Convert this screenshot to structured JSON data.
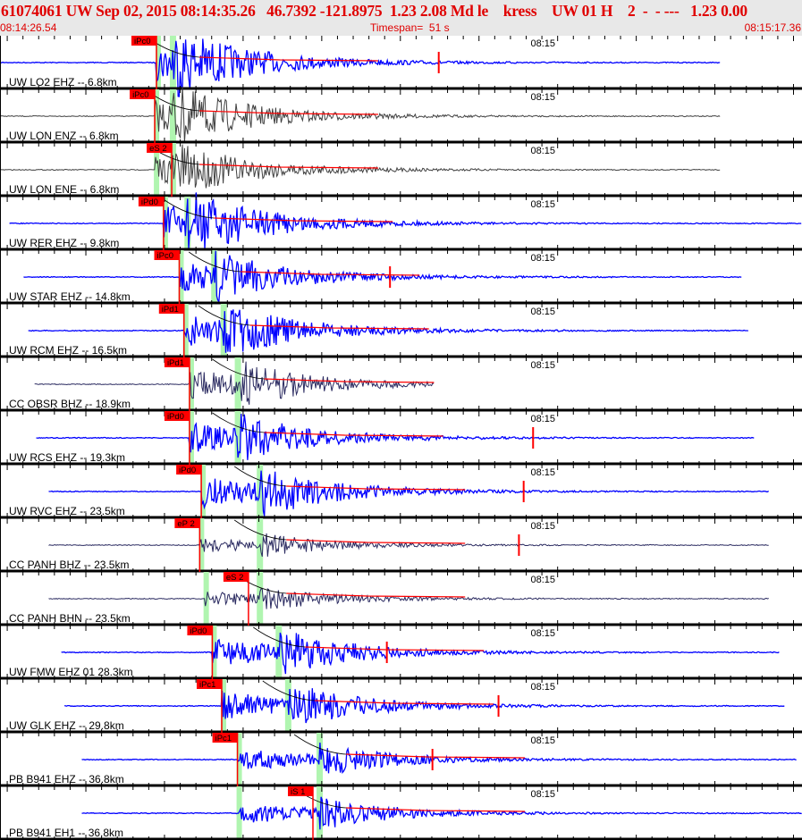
{
  "header": {
    "title": "61074061 UW Sep 02, 2015 08:14:35.26   46.7392 -121.8975  1.23 2.08 Md le    kress    UW 01 H    2  -  - ---   1.23 0.00",
    "start_time": "08:14:26.54",
    "timespan": "Timespan=  51 s",
    "end_time": "08:15:17.36"
  },
  "timespan_s": 51,
  "minute_mark": {
    "label": "08:15",
    "t": 33.8
  },
  "colors": {
    "blue": "#0000ff",
    "gray": "#404040",
    "navy": "#2a2a60",
    "pick": "#ff0000",
    "band": "#b0f5b0"
  },
  "traces": [
    {
      "label": "UW LO2 EHZ -- 6.8km",
      "color": "blue",
      "start": 0,
      "end": 45.8,
      "p": 9.95,
      "s": 10.97,
      "pick": {
        "text": "iPc0",
        "t": 9.95
      },
      "spike": 27.9,
      "amp": 1.0
    },
    {
      "label": "UW LON ENZ -- 6.8km",
      "color": "gray",
      "start": 0,
      "end": 45.8,
      "p": 9.84,
      "s": 10.97,
      "pick": {
        "text": "iPc0",
        "t": 9.84
      },
      "spike": null,
      "amp": 0.9
    },
    {
      "label": "UW LON ENE -- 6.8km",
      "color": "gray",
      "start": 0,
      "end": 45.8,
      "p": 9.84,
      "s": 10.97,
      "pick": {
        "text": "eS 2",
        "t": 10.92
      },
      "spike": null,
      "amp": 0.8
    },
    {
      "label": "UW RER EHZ -- 9.8km",
      "color": "blue",
      "start": 0.6,
      "end": 51,
      "p": 10.4,
      "s": 11.9,
      "pick": {
        "text": "iPd0",
        "t": 10.4
      },
      "spike": null,
      "amp": 1.0
    },
    {
      "label": "UW STAR EHZ -- 14.8km",
      "color": "blue",
      "start": 1.5,
      "end": 47.2,
      "p": 11.4,
      "s": 13.6,
      "pick": {
        "text": "iPc0",
        "t": 11.4
      },
      "spike": 24.8,
      "amp": 0.8
    },
    {
      "label": "UW RCM EHZ -- 16.5km",
      "color": "blue",
      "start": 1.8,
      "end": 47.6,
      "p": 11.7,
      "s": 14.2,
      "pick": {
        "text": "iPd1",
        "t": 11.7
      },
      "spike": null,
      "amp": 0.9
    },
    {
      "label": "CC OBSR BHZ -- 18.9km",
      "color": "navy",
      "start": 2.2,
      "end": 27.6,
      "p": 12.05,
      "s": 15.1,
      "pick": {
        "text": "iPd1",
        "t": 12.05
      },
      "spike": null,
      "amp": 0.8
    },
    {
      "label": "UW RCS EHZ -- 19.3km",
      "color": "blue",
      "start": 2.3,
      "end": 48.0,
      "p": 12.05,
      "s": 15.1,
      "pick": {
        "text": "iPd0",
        "t": 12.05
      },
      "spike": 33.9,
      "amp": 0.8
    },
    {
      "label": "UW RVC EHZ -- 23.5km",
      "color": "blue",
      "start": 3.1,
      "end": 48.9,
      "p": 12.8,
      "s": 16.5,
      "pick": {
        "text": "iPd0",
        "t": 12.8
      },
      "spike": 33.3,
      "amp": 0.9
    },
    {
      "label": "CC PANH BHZ -- 23.5km",
      "color": "navy",
      "start": 3.1,
      "end": 48.9,
      "p": 12.7,
      "s": 16.5,
      "pick": {
        "text": "eP 2",
        "t": 12.7
      },
      "spike": 33.0,
      "amp": 0.4
    },
    {
      "label": "CC PANH BHN -- 23.5km",
      "color": "navy",
      "start": 3.1,
      "end": 48.9,
      "p": 13.0,
      "s": 16.5,
      "pick": {
        "text": "eS 2",
        "t": 15.8
      },
      "spike": null,
      "amp": 0.4
    },
    {
      "label": "UW FMW EHZ 01 28.3km",
      "color": "blue",
      "start": 3.9,
      "end": 49.6,
      "p": 13.5,
      "s": 17.7,
      "pick": {
        "text": "iPd0",
        "t": 13.5
      },
      "spike": 24.6,
      "amp": 0.8
    },
    {
      "label": "UW GLK EHZ -- 29.8km",
      "color": "blue",
      "start": 4.1,
      "end": 49.9,
      "p": 14.1,
      "s": 18.3,
      "pick": {
        "text": "iPc1",
        "t": 14.1
      },
      "spike": 31.7,
      "amp": 0.8
    },
    {
      "label": "PB B941 EHZ -- 36.8km",
      "color": "blue",
      "start": 5.2,
      "end": 50.7,
      "p": 15.1,
      "s": 20.3,
      "pick": {
        "text": "iPc1",
        "t": 15.1
      },
      "spike": 27.5,
      "amp": 0.6
    },
    {
      "label": "PB B941 EH1 -- 36.8km",
      "color": "blue",
      "start": 5.2,
      "end": 51,
      "p": 15.1,
      "s": 20.3,
      "pick": {
        "text": "iS 1",
        "t": 19.9
      },
      "spike": null,
      "amp": 0.6
    }
  ]
}
